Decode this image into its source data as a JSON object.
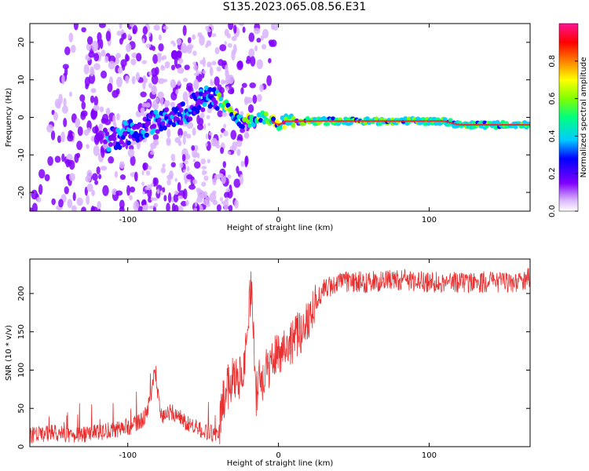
{
  "title": "S135.2023.065.08.56.E31",
  "chart_data": [
    {
      "type": "heatmap",
      "xlabel": "Height of straight line (km)",
      "ylabel": "Frequency (Hz)",
      "xlim": [
        -165,
        167
      ],
      "ylim": [
        -25,
        25
      ],
      "x_ticks": [
        -100,
        0,
        100
      ],
      "y_ticks": [
        -20,
        -10,
        0,
        10,
        20
      ],
      "ridge": {
        "x": [
          -110,
          -100,
          -90,
          -80,
          -70,
          -60,
          -50,
          -45,
          -40,
          -35,
          -30,
          -25,
          -20,
          -15,
          -10,
          -5,
          0,
          5,
          10,
          20,
          40,
          60,
          80,
          100,
          110,
          120,
          140,
          160,
          167
        ],
        "y": [
          -6,
          -4,
          -3,
          -1,
          0,
          2,
          5,
          6,
          5,
          3,
          1,
          -1,
          -1,
          -1,
          0,
          -1,
          -2,
          -1,
          -1,
          -1,
          -1,
          -1,
          -1,
          -1,
          -1,
          -2,
          -2,
          -2,
          -2
        ]
      },
      "colorbar": {
        "label": "Normalized spectral amplitude",
        "ticks": [
          "0.0",
          "0.2",
          "0.4",
          "0.6",
          "0.8"
        ],
        "range": [
          0,
          1
        ]
      },
      "grid": false
    },
    {
      "type": "line",
      "xlabel": "Height of straight line (km)",
      "ylabel": "SNR (10 * v/v)",
      "xlim": [
        -165,
        167
      ],
      "ylim": [
        0,
        245
      ],
      "x_ticks": [
        -100,
        0,
        100
      ],
      "y_ticks": [
        0,
        50,
        100,
        150,
        200
      ],
      "series": [
        {
          "color": "#e83030",
          "x": [
            -165,
            -150,
            -130,
            -110,
            -100,
            -90,
            -85,
            -82,
            -78,
            -70,
            -60,
            -50,
            -40,
            -37,
            -33,
            -30,
            -25,
            -22,
            -18,
            -15,
            -13,
            -10,
            -5,
            0,
            5,
            10,
            15,
            18,
            22,
            25,
            30,
            40,
            60,
            80,
            100,
            120,
            140,
            160,
            167
          ],
          "y": [
            15,
            18,
            15,
            22,
            25,
            35,
            60,
            100,
            40,
            45,
            30,
            20,
            15,
            60,
            80,
            95,
            90,
            120,
            215,
            60,
            85,
            90,
            110,
            125,
            130,
            140,
            150,
            160,
            180,
            190,
            205,
            215,
            215,
            218,
            215,
            215,
            215,
            215,
            220
          ]
        }
      ],
      "grid": false
    }
  ]
}
